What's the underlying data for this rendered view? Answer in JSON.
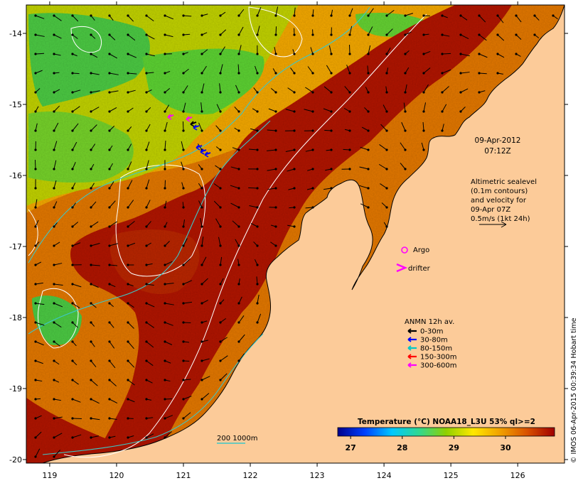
{
  "map": {
    "lon_ticks": [
      "119",
      "120",
      "121",
      "122",
      "123",
      "124",
      "125",
      "126"
    ],
    "lat_ticks": [
      "-14",
      "-15",
      "-16",
      "-17",
      "-18",
      "-19",
      "-20"
    ],
    "lon_range": [
      118.65,
      126.7
    ],
    "lat_range": [
      -20.05,
      -13.6
    ],
    "colors": {
      "land": "#fccb99",
      "hot": "#a81400",
      "warm": "#d86a00",
      "mid": "#e8a800",
      "cool": "#9ed000",
      "green": "#3cc43c",
      "contour": "#ffffff",
      "isobath": "#3cc8c8"
    }
  },
  "timestamp": {
    "date": "09-Apr-2012",
    "time": "07:12Z"
  },
  "altimetry_note": {
    "lines": [
      "Altimetric sealevel",
      "(0.1m contours)",
      "and velocity for",
      "09-Apr 07Z",
      "0.5m/s (1kt 24h)"
    ]
  },
  "markers": {
    "argo_label": "Argo",
    "drifter_label": "drifter",
    "argo_color": "#ff00ff",
    "drifter_color": "#ff00ff"
  },
  "anmn_legend": {
    "title": "ANMN 12h av.",
    "items": [
      {
        "label": "0-30m",
        "color": "#000000"
      },
      {
        "label": "30-80m",
        "color": "#0000ff"
      },
      {
        "label": "80-150m",
        "color": "#00c8c8"
      },
      {
        "label": "150-300m",
        "color": "#ff0000"
      },
      {
        "label": "300-600m",
        "color": "#ff00ff"
      }
    ]
  },
  "isobath_legend": {
    "label": "200  1000m"
  },
  "colorbar": {
    "title": "Temperature (°C) NOAA18_L3U 53% ql>=2",
    "ticks": [
      "27",
      "28",
      "29",
      "30"
    ],
    "tick_values": [
      27,
      28,
      29,
      30
    ],
    "range": [
      26.75,
      30.95
    ],
    "stops": [
      "#00008c",
      "#0040ff",
      "#00c8ff",
      "#30d890",
      "#90d000",
      "#ffe800",
      "#f0a000",
      "#d85000",
      "#a00000"
    ]
  },
  "credit": "© IMOS 06-Apr-2015 00:39:34 Hobart time"
}
